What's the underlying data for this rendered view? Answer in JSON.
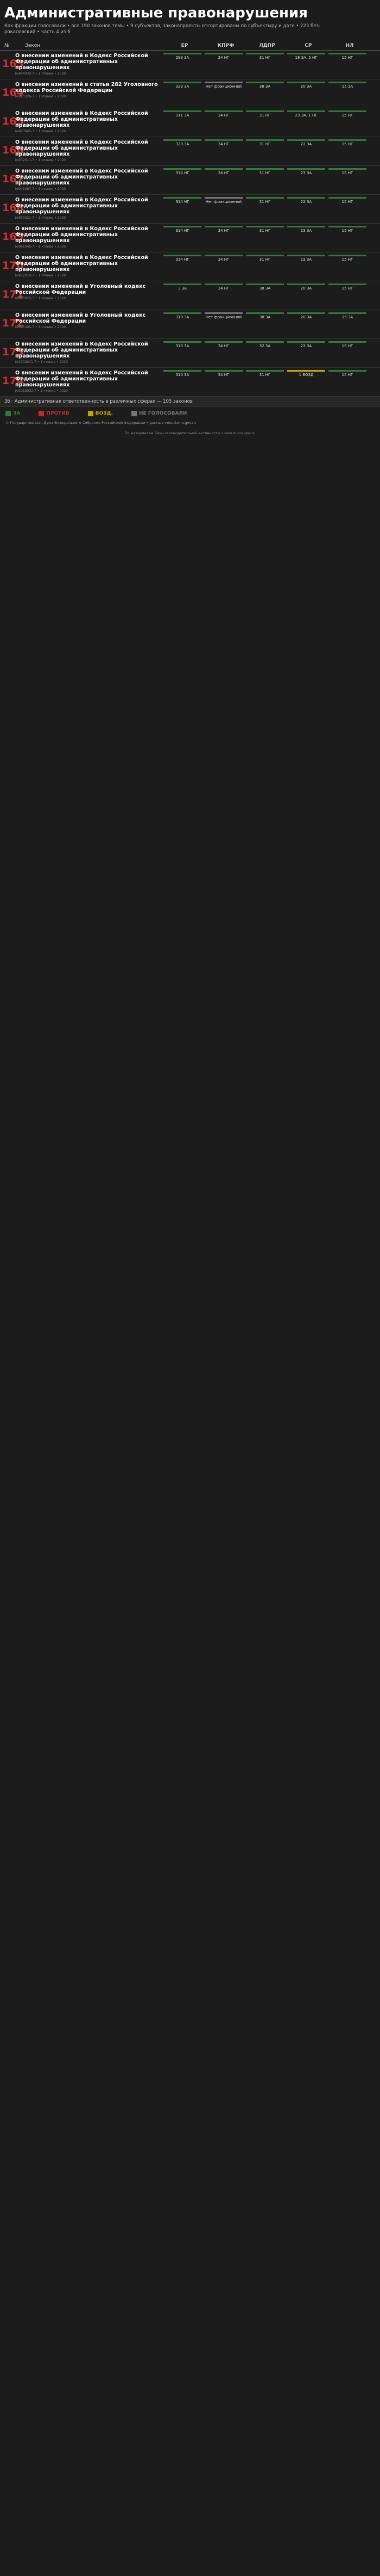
{
  "header": {
    "title": "Административные правонарушения",
    "subtitle": "Как фракции голосовали • все 190 законов темы • 9 субъектов, законопроекты отсортированы по субъектыру и дате • 223 без-рокаловский • часть 4 из 6"
  },
  "columns": {
    "n": "№",
    "law": "Закон",
    "parties": [
      "ЕР",
      "КПРФ",
      "ЛДПР",
      "СР",
      "НЛ"
    ]
  },
  "rows": [
    {
      "n": "163",
      "t": "О внесении изменений в Кодекс Российской Федерации об административных правонарушениях",
      "m": "№894032-7 • 1 чтение • 2020",
      "c": [
        [
          "g",
          "293 ЗА"
        ],
        [
          "g",
          "34 НГ"
        ],
        [
          "g",
          "31 НГ"
        ],
        [
          "g",
          "18 ЗА, 5 НГ"
        ],
        [
          "g",
          "15 НГ"
        ]
      ]
    },
    {
      "n": "164",
      "t": "О внесении изменений в статьи 282 Уголовного кодекса Российской Федерации",
      "m": "№920326-7 • 1 чтение • 2020",
      "c": [
        [
          "g",
          "323 ЗА"
        ],
        [
          "gy",
          "Нет фракционной"
        ],
        [
          "g",
          "38 ЗА"
        ],
        [
          "g",
          "20 ЗА"
        ],
        [
          "g",
          "15 ЗА"
        ]
      ]
    },
    {
      "n": "165",
      "t": "О внесении изменений в Кодекс Российской Федерации об административных правонарушениях",
      "m": "№923045-7 • 1 чтение • 2020",
      "c": [
        [
          "g",
          "311 ЗА"
        ],
        [
          "g",
          "34 НГ"
        ],
        [
          "g",
          "31 НГ"
        ],
        [
          "g",
          "23 ЗА, 1 НГ"
        ],
        [
          "g",
          "15 НГ"
        ]
      ]
    },
    {
      "n": "166",
      "t": "О внесении изменений в Кодекс Российской Федерации об административных правонарушениях",
      "m": "№932011-7 • 1 чтение • 2020",
      "c": [
        [
          "g",
          "320 ЗА"
        ],
        [
          "g",
          "34 НГ"
        ],
        [
          "g",
          "31 НГ"
        ],
        [
          "g",
          "22 ЗА"
        ],
        [
          "g",
          "15 НГ"
        ]
      ]
    },
    {
      "n": "167",
      "t": "О внесении изменений в Кодекс Российской Федерации об административных правонарушениях",
      "m": "№941087-7 • 1 чтение • 2020",
      "c": [
        [
          "g",
          "314 НГ"
        ],
        [
          "g",
          "34 НГ"
        ],
        [
          "g",
          "31 НГ"
        ],
        [
          "g",
          "23 ЗА"
        ],
        [
          "g",
          "15 НГ"
        ]
      ]
    },
    {
      "n": "168",
      "t": "О внесении изменений в Кодекс Российской Федерации об административных правонарушениях",
      "m": "№950321-7 • 1 чтение • 2020",
      "c": [
        [
          "g",
          "314 НГ"
        ],
        [
          "gy",
          "Нет фракционной"
        ],
        [
          "g",
          "31 НГ"
        ],
        [
          "g",
          "22 ЗА"
        ],
        [
          "g",
          "15 НГ"
        ]
      ]
    },
    {
      "n": "169",
      "t": "О внесении изменений в Кодекс Российской Федерации об административных правонарушениях",
      "m": "№961045-7 • 1 чтение • 2020",
      "c": [
        [
          "g",
          "314 НГ"
        ],
        [
          "g",
          "34 НГ"
        ],
        [
          "g",
          "31 НГ"
        ],
        [
          "g",
          "23 ЗА"
        ],
        [
          "g",
          "15 НГ"
        ]
      ]
    },
    {
      "n": "170",
      "t": "О внесении изменений в Кодекс Российской Федерации об административных правонарушениях",
      "m": "№972010-7 • 1 чтение • 2020",
      "c": [
        [
          "g",
          "314 НГ"
        ],
        [
          "g",
          "34 НГ"
        ],
        [
          "g",
          "31 НГ"
        ],
        [
          "g",
          "23 ЗА"
        ],
        [
          "g",
          "15 НГ"
        ]
      ]
    },
    {
      "n": "171",
      "t": "О внесении изменений в Уголовный кодекс Российской Федерации",
      "m": "№983022-7 • 1 чтение • 2020",
      "c": [
        [
          "g",
          "3 ЗА"
        ],
        [
          "g",
          "34 НГ"
        ],
        [
          "g",
          "38 ЗА"
        ],
        [
          "g",
          "20 ЗА"
        ],
        [
          "g",
          "15 НГ"
        ]
      ]
    },
    {
      "n": "172",
      "t": "О внесении изменений в Уголовный кодекс Российской Федерации",
      "m": "№991045-7 • 1 чтение • 2020",
      "c": [
        [
          "g",
          "319 ЗА"
        ],
        [
          "gy",
          "Нет фракционной"
        ],
        [
          "g",
          "38 ЗА"
        ],
        [
          "g",
          "20 ЗА"
        ],
        [
          "g",
          "15 ЗА"
        ]
      ]
    },
    {
      "n": "173",
      "t": "О внесении изменений в Кодекс Российской Федерации об административных правонарушениях",
      "m": "№1002011-7 • 1 чтение • 2020",
      "c": [
        [
          "g",
          "319 ЗА"
        ],
        [
          "g",
          "34 НГ"
        ],
        [
          "g",
          "32 ЗА"
        ],
        [
          "g",
          "23 ЗА"
        ],
        [
          "g",
          "15 НГ"
        ]
      ]
    },
    {
      "n": "174",
      "t": "О внесении изменений в Кодекс Российской Федерации об административных правонарушениях",
      "m": "№1015032-7 • 1 чтение • 2020",
      "c": [
        [
          "g",
          "310 ЗА"
        ],
        [
          "g",
          "34 НГ"
        ],
        [
          "g",
          "31 НГ"
        ],
        [
          "y",
          "1 ВОЗД"
        ],
        [
          "g",
          "15 НГ"
        ]
      ]
    }
  ],
  "section": "3б · Административная ответственность в различных сферах — 105 законов",
  "legend": [
    {
      "label": "ЗА",
      "color": "#2e7d32"
    },
    {
      "label": "ПРОТИВ",
      "color": "#c62828"
    },
    {
      "label": "ВОЗД.",
      "color": "#c8a100"
    },
    {
      "label": "НЕ ГОЛОСОВАЛИ",
      "color": "#777777"
    }
  ],
  "footer": "© Государственная Дума Федерального Собрания Российской Федерации • данные vote.duma.gov.ru",
  "credit": "По материалам базы законодательной активности • vote.duma.gov.ru"
}
